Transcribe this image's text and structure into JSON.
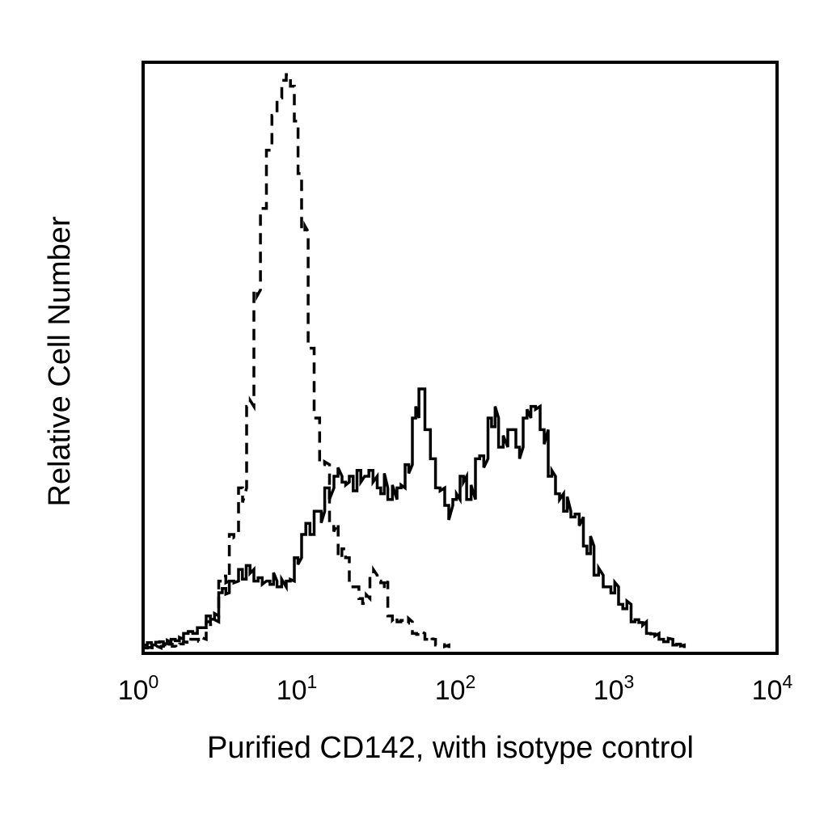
{
  "chart_data": {
    "type": "line",
    "title": "",
    "xlabel": "Purified CD142, with isotype control",
    "ylabel": "Relative Cell Number",
    "x_scale": "log",
    "xlim": [
      1,
      10000
    ],
    "ylim": [
      0,
      100
    ],
    "grid": false,
    "x_ticks": [
      {
        "base": "10",
        "exp": "0",
        "value": 1
      },
      {
        "base": "10",
        "exp": "1",
        "value": 10
      },
      {
        "base": "10",
        "exp": "2",
        "value": 100
      },
      {
        "base": "10",
        "exp": "3",
        "value": 1000
      },
      {
        "base": "10",
        "exp": "4",
        "value": 10000
      }
    ],
    "series": [
      {
        "style": "dashed",
        "color": "#000000",
        "x": [
          1,
          1.3,
          1.7,
          2.0,
          2.5,
          3.0,
          3.5,
          4.0,
          4.5,
          5.0,
          5.5,
          6.0,
          6.5,
          7.0,
          7.5,
          8.0,
          8.5,
          9.0,
          9.5,
          10,
          11,
          12,
          13,
          15,
          17,
          20,
          23,
          27,
          30,
          35,
          40,
          50,
          60,
          70,
          85
        ],
        "y": [
          0.5,
          0.8,
          1.2,
          2,
          5,
          12,
          20,
          28,
          42,
          62,
          76,
          86,
          92,
          95,
          98,
          99,
          97,
          91,
          82,
          72,
          52,
          40,
          32,
          22,
          16,
          11,
          9,
          13,
          12,
          6,
          5,
          3,
          2,
          1,
          0.5
        ]
      },
      {
        "style": "solid",
        "color": "#000000",
        "x": [
          1,
          1.2,
          1.5,
          1.8,
          2.2,
          2.5,
          3.0,
          3.5,
          4.0,
          5,
          6,
          7,
          8,
          9,
          10,
          12,
          14,
          16,
          18,
          20,
          25,
          30,
          35,
          40,
          45,
          50,
          55,
          60,
          65,
          70,
          80,
          90,
          100,
          110,
          125,
          150,
          175,
          200,
          225,
          250,
          280,
          320,
          360,
          400,
          450,
          500,
          600,
          700,
          800,
          1000,
          1200,
          1500,
          1800,
          2200,
          2600
        ],
        "y": [
          1,
          1.5,
          2,
          3,
          4,
          6,
          10,
          12,
          14,
          12,
          12,
          11,
          12,
          16,
          20,
          24,
          28,
          30,
          29,
          30,
          30,
          28,
          26,
          28,
          32,
          40,
          45,
          38,
          33,
          28,
          25,
          26,
          30,
          26,
          33,
          40,
          35,
          38,
          35,
          40,
          42,
          38,
          30,
          27,
          24,
          23,
          18,
          13,
          11,
          8,
          5,
          3,
          2,
          1,
          0.5
        ]
      }
    ]
  }
}
